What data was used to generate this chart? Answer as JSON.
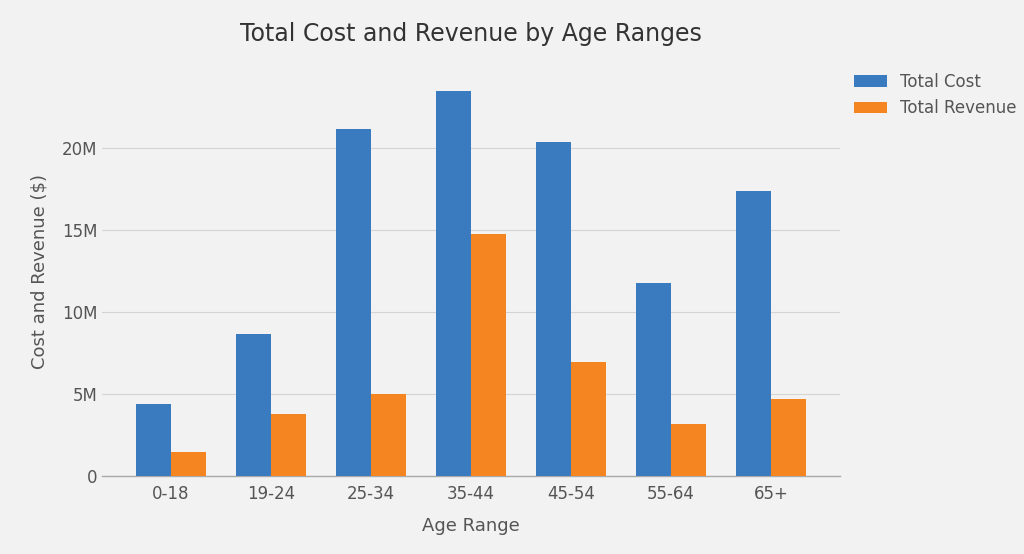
{
  "title": "Total Cost and Revenue by Age Ranges",
  "xlabel": "Age Range",
  "ylabel": "Cost and Revenue ($)",
  "categories": [
    "0-18",
    "19-24",
    "25-34",
    "35-44",
    "45-54",
    "55-64",
    "65+"
  ],
  "total_cost": [
    4400000,
    8700000,
    21200000,
    23500000,
    20400000,
    11800000,
    17400000
  ],
  "total_revenue": [
    1500000,
    3800000,
    5000000,
    14800000,
    7000000,
    3200000,
    4700000
  ],
  "cost_color": "#3a7abf",
  "revenue_color": "#f58520",
  "background_color": "#f2f2f2",
  "plot_bg_color": "#f2f2f2",
  "bar_width": 0.35,
  "ylim_max": 25000000,
  "legend_labels": [
    "Total Cost",
    "Total Revenue"
  ],
  "title_fontsize": 17,
  "label_fontsize": 13,
  "tick_fontsize": 12,
  "yticks": [
    0,
    5000000,
    10000000,
    15000000,
    20000000
  ],
  "grid_color": "#d4d4d4",
  "spine_color": "#aaaaaa",
  "text_color": "#555555"
}
